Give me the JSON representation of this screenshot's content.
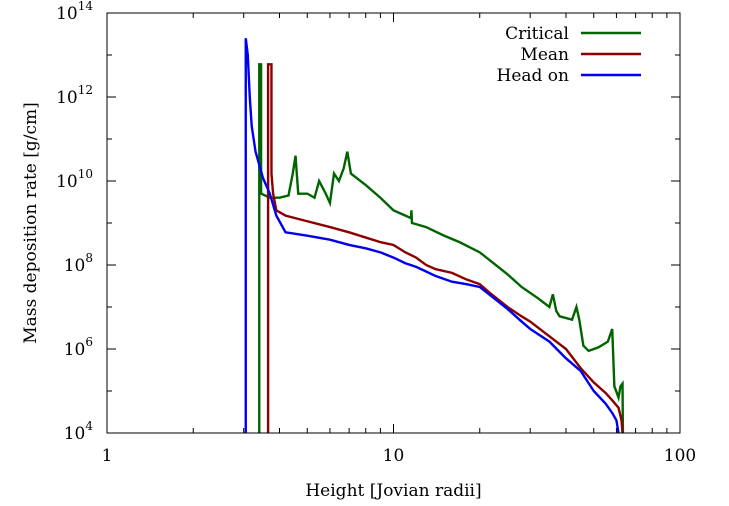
{
  "chart_data": {
    "type": "line",
    "title": "",
    "xlabel": "Height [Jovian radii]",
    "ylabel": "Mass deposition rate [g/cm]",
    "x_scale": "log",
    "y_scale": "log",
    "xlim": [
      1,
      100
    ],
    "ylim": [
      10000,
      100000000000000
    ],
    "grid": false,
    "legend_position": "top-right",
    "x_ticks": [
      {
        "value": 1,
        "label": "1"
      },
      {
        "value": 10,
        "label": "10"
      },
      {
        "value": 100,
        "label": "100"
      }
    ],
    "y_ticks": [
      {
        "value": 10000,
        "base": "10",
        "exp": "4"
      },
      {
        "value": 1000000,
        "base": "10",
        "exp": "6"
      },
      {
        "value": 100000000,
        "base": "10",
        "exp": "8"
      },
      {
        "value": 10000000000,
        "base": "10",
        "exp": "10"
      },
      {
        "value": 1000000000000,
        "base": "10",
        "exp": "12"
      },
      {
        "value": 100000000000000,
        "base": "10",
        "exp": "14"
      }
    ],
    "series": [
      {
        "name": "Critical",
        "color": "#006400",
        "points": [
          [
            3.4,
            10000
          ],
          [
            3.4,
            6000000000000.0
          ],
          [
            3.45,
            6000000000000.0
          ],
          [
            3.45,
            5000000000.0
          ],
          [
            3.7,
            4000000000.0
          ],
          [
            4.0,
            4000000000.0
          ],
          [
            4.3,
            4500000000.0
          ],
          [
            4.45,
            15000000000.0
          ],
          [
            4.55,
            40000000000.0
          ],
          [
            4.65,
            5000000000.0
          ],
          [
            5.0,
            5000000000.0
          ],
          [
            5.3,
            4000000000.0
          ],
          [
            5.5,
            10000000000.0
          ],
          [
            5.8,
            5000000000.0
          ],
          [
            6.0,
            3000000000.0
          ],
          [
            6.2,
            15000000000.0
          ],
          [
            6.45,
            10000000000.0
          ],
          [
            6.7,
            20000000000.0
          ],
          [
            6.9,
            50000000000.0
          ],
          [
            7.1,
            15000000000.0
          ],
          [
            8,
            8000000000.0
          ],
          [
            9,
            4000000000.0
          ],
          [
            10,
            2000000000.0
          ],
          [
            11,
            1500000000.0
          ],
          [
            11.5,
            1300000000.0
          ],
          [
            11.55,
            2000000000.0
          ],
          [
            11.6,
            1000000000.0
          ],
          [
            13,
            800000000.0
          ],
          [
            15,
            500000000.0
          ],
          [
            17,
            350000000.0
          ],
          [
            20,
            200000000.0
          ],
          [
            22,
            120000000.0
          ],
          [
            25,
            60000000.0
          ],
          [
            28,
            30000000.0
          ],
          [
            32,
            16000000.0
          ],
          [
            35,
            10000000.0
          ],
          [
            36,
            20000000.0
          ],
          [
            37,
            8000000.0
          ],
          [
            38,
            6000000.0
          ],
          [
            42,
            5000000.0
          ],
          [
            43.5,
            10000000.0
          ],
          [
            44.5,
            5000000.0
          ],
          [
            46,
            1200000.0
          ],
          [
            48,
            900000.0
          ],
          [
            52,
            1100000.0
          ],
          [
            56,
            1500000.0
          ],
          [
            58,
            3000000.0
          ],
          [
            59,
            130000.0
          ],
          [
            61,
            70000.0
          ],
          [
            62,
            130000.0
          ],
          [
            63,
            150000.0
          ],
          [
            63.2,
            10000
          ]
        ]
      },
      {
        "name": "Mean",
        "color": "#8b0000",
        "points": [
          [
            3.65,
            10000
          ],
          [
            3.65,
            6000000000000.0
          ],
          [
            3.75,
            6000000000000.0
          ],
          [
            3.75,
            15000000000.0
          ],
          [
            3.8,
            5000000000.0
          ],
          [
            3.9,
            2000000000.0
          ],
          [
            4.2,
            1500000000.0
          ],
          [
            5,
            1100000000.0
          ],
          [
            6,
            800000000.0
          ],
          [
            7,
            600000000.0
          ],
          [
            8,
            450000000.0
          ],
          [
            9,
            350000000.0
          ],
          [
            10,
            300000000.0
          ],
          [
            11,
            200000000.0
          ],
          [
            12,
            150000000.0
          ],
          [
            13,
            100000000.0
          ],
          [
            14,
            80000000.0
          ],
          [
            16,
            65000000.0
          ],
          [
            18,
            45000000.0
          ],
          [
            20,
            35000000.0
          ],
          [
            22,
            20000000.0
          ],
          [
            25,
            10000000.0
          ],
          [
            28,
            6000000.0
          ],
          [
            30,
            4500000.0
          ],
          [
            35,
            2000000.0
          ],
          [
            40,
            1000000.0
          ],
          [
            45,
            350000.0
          ],
          [
            50,
            160000.0
          ],
          [
            55,
            90000.0
          ],
          [
            58,
            60000.0
          ],
          [
            61,
            40000.0
          ],
          [
            62.5,
            20000
          ],
          [
            63,
            10000
          ]
        ]
      },
      {
        "name": "Head on",
        "color": "#0000ee",
        "points": [
          [
            3.05,
            10000
          ],
          [
            3.05,
            25000000000000.0
          ],
          [
            3.1,
            10000000000000.0
          ],
          [
            3.15,
            1000000000000.0
          ],
          [
            3.2,
            200000000000.0
          ],
          [
            3.3,
            50000000000.0
          ],
          [
            3.5,
            12000000000.0
          ],
          [
            3.7,
            5000000000.0
          ],
          [
            3.9,
            1500000000.0
          ],
          [
            4.2,
            600000000.0
          ],
          [
            5,
            500000000.0
          ],
          [
            6,
            400000000.0
          ],
          [
            7,
            300000000.0
          ],
          [
            8,
            250000000.0
          ],
          [
            9,
            200000000.0
          ],
          [
            10,
            150000000.0
          ],
          [
            11,
            110000000.0
          ],
          [
            12,
            90000000.0
          ],
          [
            13,
            70000000.0
          ],
          [
            14,
            55000000.0
          ],
          [
            16,
            40000000.0
          ],
          [
            18,
            35000000.0
          ],
          [
            20,
            30000000.0
          ],
          [
            22,
            18000000.0
          ],
          [
            25,
            9000000.0
          ],
          [
            28,
            4500000.0
          ],
          [
            30,
            3000000.0
          ],
          [
            35,
            1500000.0
          ],
          [
            40,
            600000.0
          ],
          [
            45,
            300000.0
          ],
          [
            50,
            100000.0
          ],
          [
            55,
            50000.0
          ],
          [
            58,
            30000.0
          ],
          [
            60,
            20000.0
          ],
          [
            61,
            10000
          ]
        ]
      }
    ]
  }
}
